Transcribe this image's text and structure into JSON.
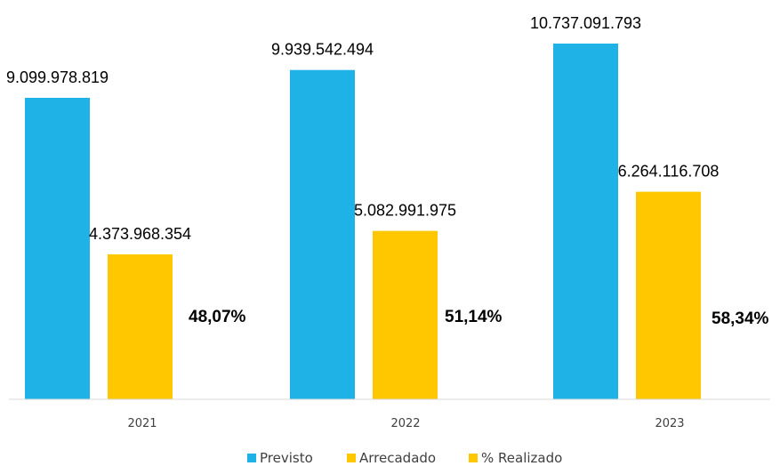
{
  "chart_data": {
    "type": "bar",
    "categories": [
      "2021",
      "2022",
      "2023"
    ],
    "series": [
      {
        "name": "Previsto",
        "values": [
          9099978819,
          9939542494,
          10737091793
        ],
        "labels": [
          "9.099.978.819",
          "9.939.542.494",
          "10.737.091.793"
        ],
        "color": "#1FB2E6"
      },
      {
        "name": "Arrecadado",
        "values": [
          4373968354,
          5082991975,
          6264116708
        ],
        "labels": [
          "4.373.968.354",
          "5.082.991.975",
          "6.264.116.708"
        ],
        "color": "#FFC700"
      },
      {
        "name": "% Realizado",
        "values": [
          48.07,
          51.14,
          58.34
        ],
        "labels": [
          "48,07%",
          "51,14%",
          "58,34%"
        ],
        "color": "#FFC700"
      }
    ],
    "title": "",
    "xlabel": "",
    "ylabel": "",
    "ylim": [
      0,
      11500000000
    ],
    "grid": false,
    "legend": "bottom-center"
  }
}
